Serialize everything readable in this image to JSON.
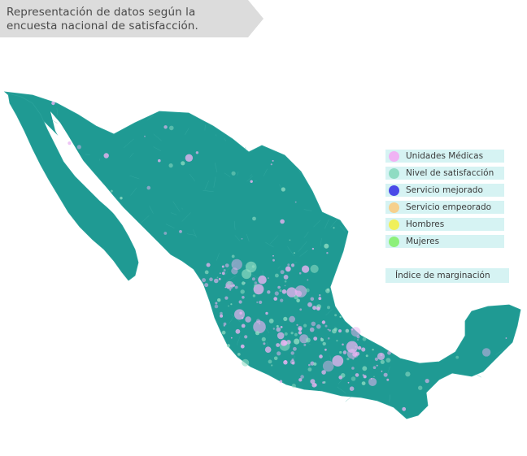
{
  "title": "Representación de datos según la encuesta nacional de satisfacción.",
  "legend": {
    "items": [
      {
        "label": "Unidades Médicas",
        "color": "#f0b3f4"
      },
      {
        "label": "Nivel de satisfacción",
        "color": "#8fdcc3"
      },
      {
        "label": "Servicio mejorado",
        "color": "#4a4ae8"
      },
      {
        "label": "Servicio empeorado",
        "color": "#f6d08c"
      },
      {
        "label": "Hombres",
        "color": "#f0f05a"
      },
      {
        "label": "Mujeres",
        "color": "#8cf07a"
      }
    ]
  },
  "index_button": "Índice de marginación",
  "colors": {
    "map_fill": "#1f9a93",
    "map_border": "#2ba39c",
    "banner": "#dcdcdc",
    "legend_bg": "#d6f3f3",
    "marker_pink": "#e9b3f2",
    "marker_mint": "#8fdcc3"
  }
}
